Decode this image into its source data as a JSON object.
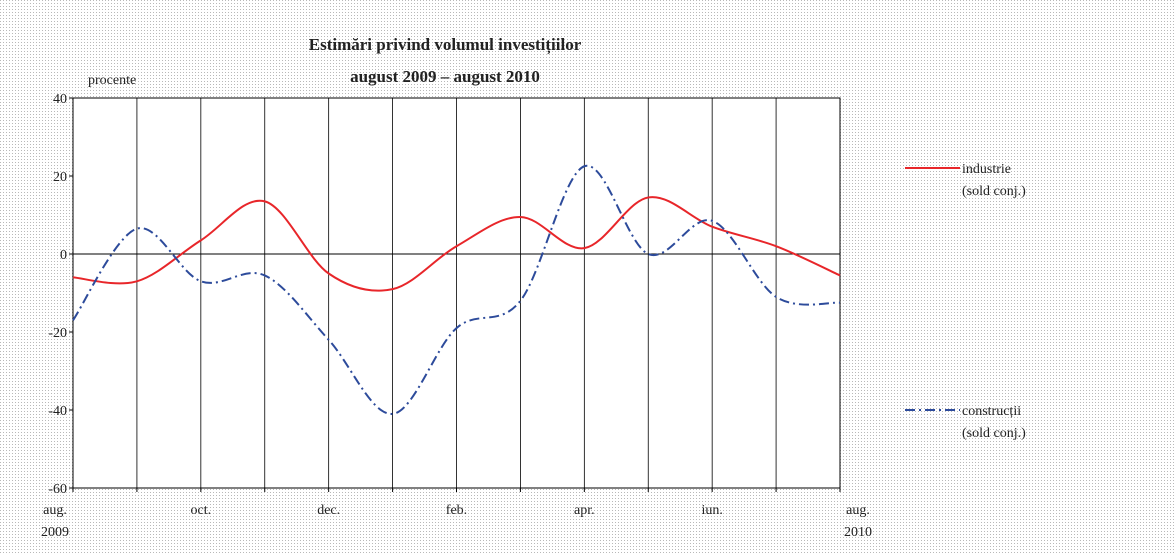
{
  "chart_data": {
    "type": "line",
    "title": "Estimări privind volumul investițiilor",
    "subtitle": "august 2009 – august 2010",
    "y_label": "procente",
    "categories": [
      "aug. 2009",
      null,
      "oct.",
      null,
      "dec.",
      null,
      "feb.",
      null,
      "apr.",
      null,
      "iun.",
      null,
      "aug. 2010"
    ],
    "series": [
      {
        "name": "industrie (sold conj.)",
        "color": "#e8262a",
        "style": "solid",
        "values": [
          -6,
          -7,
          3.5,
          13.5,
          -5,
          -9,
          2,
          9.5,
          1.5,
          14.5,
          7,
          2,
          -5.5
        ]
      },
      {
        "name": "construcții (sold conj.)",
        "color": "#2d4b9b",
        "style": "dashdot",
        "values": [
          -17,
          6.5,
          -7,
          -5.5,
          -22,
          -41,
          -19,
          -12,
          22.5,
          0,
          8.5,
          -11,
          -12.5
        ]
      }
    ],
    "ylim": [
      -60,
      40
    ],
    "yticks": [
      -60,
      -40,
      -20,
      0,
      20,
      40
    ],
    "grid": "x",
    "legend": "right"
  }
}
